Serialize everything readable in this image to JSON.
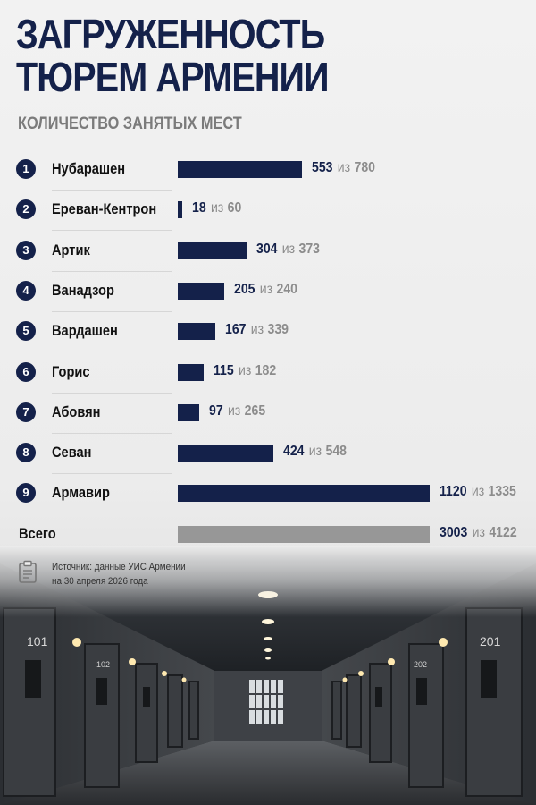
{
  "title_line1": "ЗАГРУЖЕННОСТЬ",
  "title_line2": "ТЮРЕМ АРМЕНИИ",
  "subtitle": "КОЛИЧЕСТВО ЗАНЯТЫХ МЕСТ",
  "of_word": "из",
  "source_line1": "Источник: данные УИС Армении",
  "source_line2": "на 30 апреля 2026 года",
  "scene": {
    "left_door_numbers": [
      "101",
      "102"
    ],
    "right_door_numbers": [
      "201",
      "202"
    ]
  },
  "colors": {
    "bar": "#14214a",
    "total_bar": "#979797",
    "text_secondary": "#8c8c8c"
  },
  "chart_data": {
    "type": "bar",
    "orientation": "horizontal",
    "title": "ЗАГРУЖЕННОСТЬ ТЮРЕМ АРМЕНИИ",
    "subtitle": "КОЛИЧЕСТВО ЗАНЯТЫХ МЕСТ",
    "categories": [
      "Нубарашен",
      "Ереван-Кентрон",
      "Артик",
      "Ванадзор",
      "Вардашен",
      "Горис",
      "Абовян",
      "Севан",
      "Армавир"
    ],
    "ranks": [
      "1",
      "2",
      "3",
      "4",
      "5",
      "6",
      "7",
      "8",
      "9"
    ],
    "values": [
      553,
      18,
      304,
      205,
      167,
      115,
      97,
      424,
      1120
    ],
    "capacity": [
      780,
      60,
      373,
      240,
      339,
      182,
      265,
      548,
      1335
    ],
    "total": {
      "label": "Всего",
      "value": 3003,
      "capacity": 4122
    },
    "xlim": [
      0,
      1120
    ],
    "grid": false,
    "legend": "none"
  }
}
